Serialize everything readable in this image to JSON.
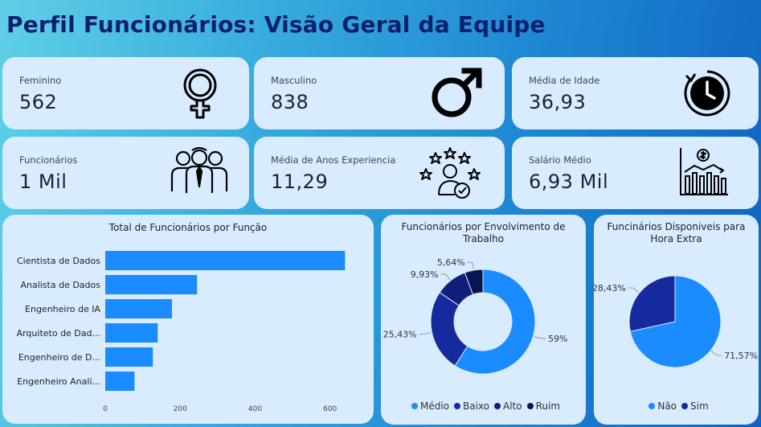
{
  "page": {
    "title": "Perfil Funcionários: Visão Geral da Equipe"
  },
  "kpis": {
    "feminino": {
      "label": "Feminino",
      "value": "562",
      "icon": "female-icon"
    },
    "masculino": {
      "label": "Masculino",
      "value": "838",
      "icon": "male-icon"
    },
    "idade": {
      "label": "Média de Idade",
      "value": "36,93",
      "icon": "clock-icon"
    },
    "funcionarios": {
      "label": "Funcionários",
      "value": "1 Mil",
      "icon": "team-icon"
    },
    "experiencia": {
      "label": "Média de Anos Experiencia",
      "value": "11,29",
      "icon": "rated-person-icon"
    },
    "salario": {
      "label": "Salário Médio",
      "value": "6,93 Mil",
      "icon": "salary-chart-icon"
    }
  },
  "colors": {
    "accent": "#1a8cff",
    "dark1": "#152a9c",
    "dark2": "#0f1f7a",
    "dark3": "#0a1452",
    "title": "#0c1f6e",
    "card": "#d8ebff"
  },
  "chart_data": [
    {
      "type": "bar",
      "orientation": "horizontal",
      "title": "Total de Funcionários por Função",
      "categories": [
        "Cientista de Dados",
        "Analista de Dados",
        "Engenheiro de IA",
        "Arquiteto de Dad...",
        "Engenheiro de D...",
        "Engenheiro Anali..."
      ],
      "values": [
        640,
        245,
        178,
        140,
        127,
        78
      ],
      "xticks": [
        "0",
        "200",
        "400",
        "600"
      ],
      "xlim": [
        0,
        680
      ]
    },
    {
      "type": "pie",
      "donut": true,
      "title": "Funcionários por Envolvimento de Trabalho",
      "legend": [
        "Médio",
        "Baixo",
        "Alto",
        "Ruim"
      ],
      "values": [
        59,
        25.43,
        9.93,
        5.64
      ],
      "labels": [
        "59%",
        "25,43%",
        "9,93%",
        "5,64%"
      ]
    },
    {
      "type": "pie",
      "title": "Funcinários Disponiveis para Hora Extra",
      "legend": [
        "Não",
        "Sim"
      ],
      "values": [
        71.57,
        28.43
      ],
      "labels": [
        "71,57%",
        "28,43%"
      ]
    }
  ]
}
